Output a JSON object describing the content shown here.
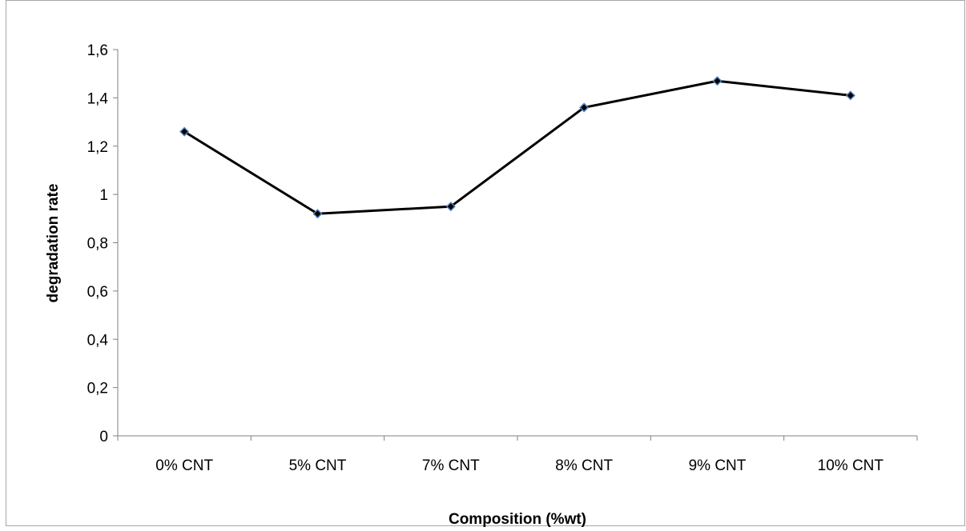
{
  "chart_data": {
    "type": "line",
    "categories": [
      "0% CNT",
      "5% CNT",
      "7% CNT",
      "8% CNT",
      "9% CNT",
      "10% CNT"
    ],
    "series": [
      {
        "values": [
          1.26,
          0.92,
          0.95,
          1.36,
          1.47,
          1.41
        ]
      }
    ],
    "xlabel": "Composition (%wt)",
    "ylabel": "degradation rate",
    "ylim": [
      0,
      1.6
    ],
    "yticks": [
      0,
      0.2,
      0.4,
      0.6,
      0.8,
      1,
      1.2,
      1.4,
      1.6
    ],
    "ytick_labels": [
      "0",
      "0,2",
      "0,4",
      "0,6",
      "0,8",
      "1",
      "1,2",
      "1,4",
      "1,6"
    ],
    "grid": false,
    "legend": "none",
    "colors": {
      "line": "#000000",
      "marker_fill": "#000000",
      "marker_edge": "#4f81bd"
    }
  }
}
